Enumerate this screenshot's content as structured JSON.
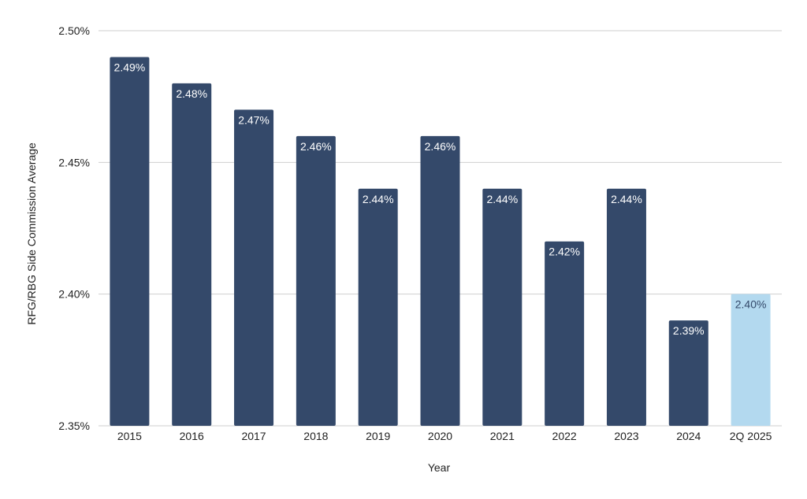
{
  "chart_data": {
    "type": "bar",
    "title": "",
    "xlabel": "Year",
    "ylabel": "RFG/RBG Side Commission Average",
    "categories": [
      "2015",
      "2016",
      "2017",
      "2018",
      "2019",
      "2020",
      "2021",
      "2022",
      "2023",
      "2024",
      "2Q 2025"
    ],
    "values": [
      2.49,
      2.48,
      2.47,
      2.46,
      2.44,
      2.46,
      2.44,
      2.42,
      2.44,
      2.39,
      2.4
    ],
    "data_labels": [
      "2.49%",
      "2.48%",
      "2.47%",
      "2.46%",
      "2.44%",
      "2.46%",
      "2.44%",
      "2.42%",
      "2.44%",
      "2.39%",
      "2.40%"
    ],
    "ylim": [
      2.35,
      2.5
    ],
    "yticks": [
      2.35,
      2.4,
      2.45,
      2.5
    ],
    "ytick_labels": [
      "2.35%",
      "2.40%",
      "2.45%",
      "2.50%"
    ],
    "grid": true,
    "legend": "none",
    "colors": {
      "bar": "#34496a",
      "highlight_bar": "#b3d9ef",
      "label_on_dark": "#ffffff",
      "label_on_light": "#34496a",
      "highlight_index": 10
    }
  }
}
